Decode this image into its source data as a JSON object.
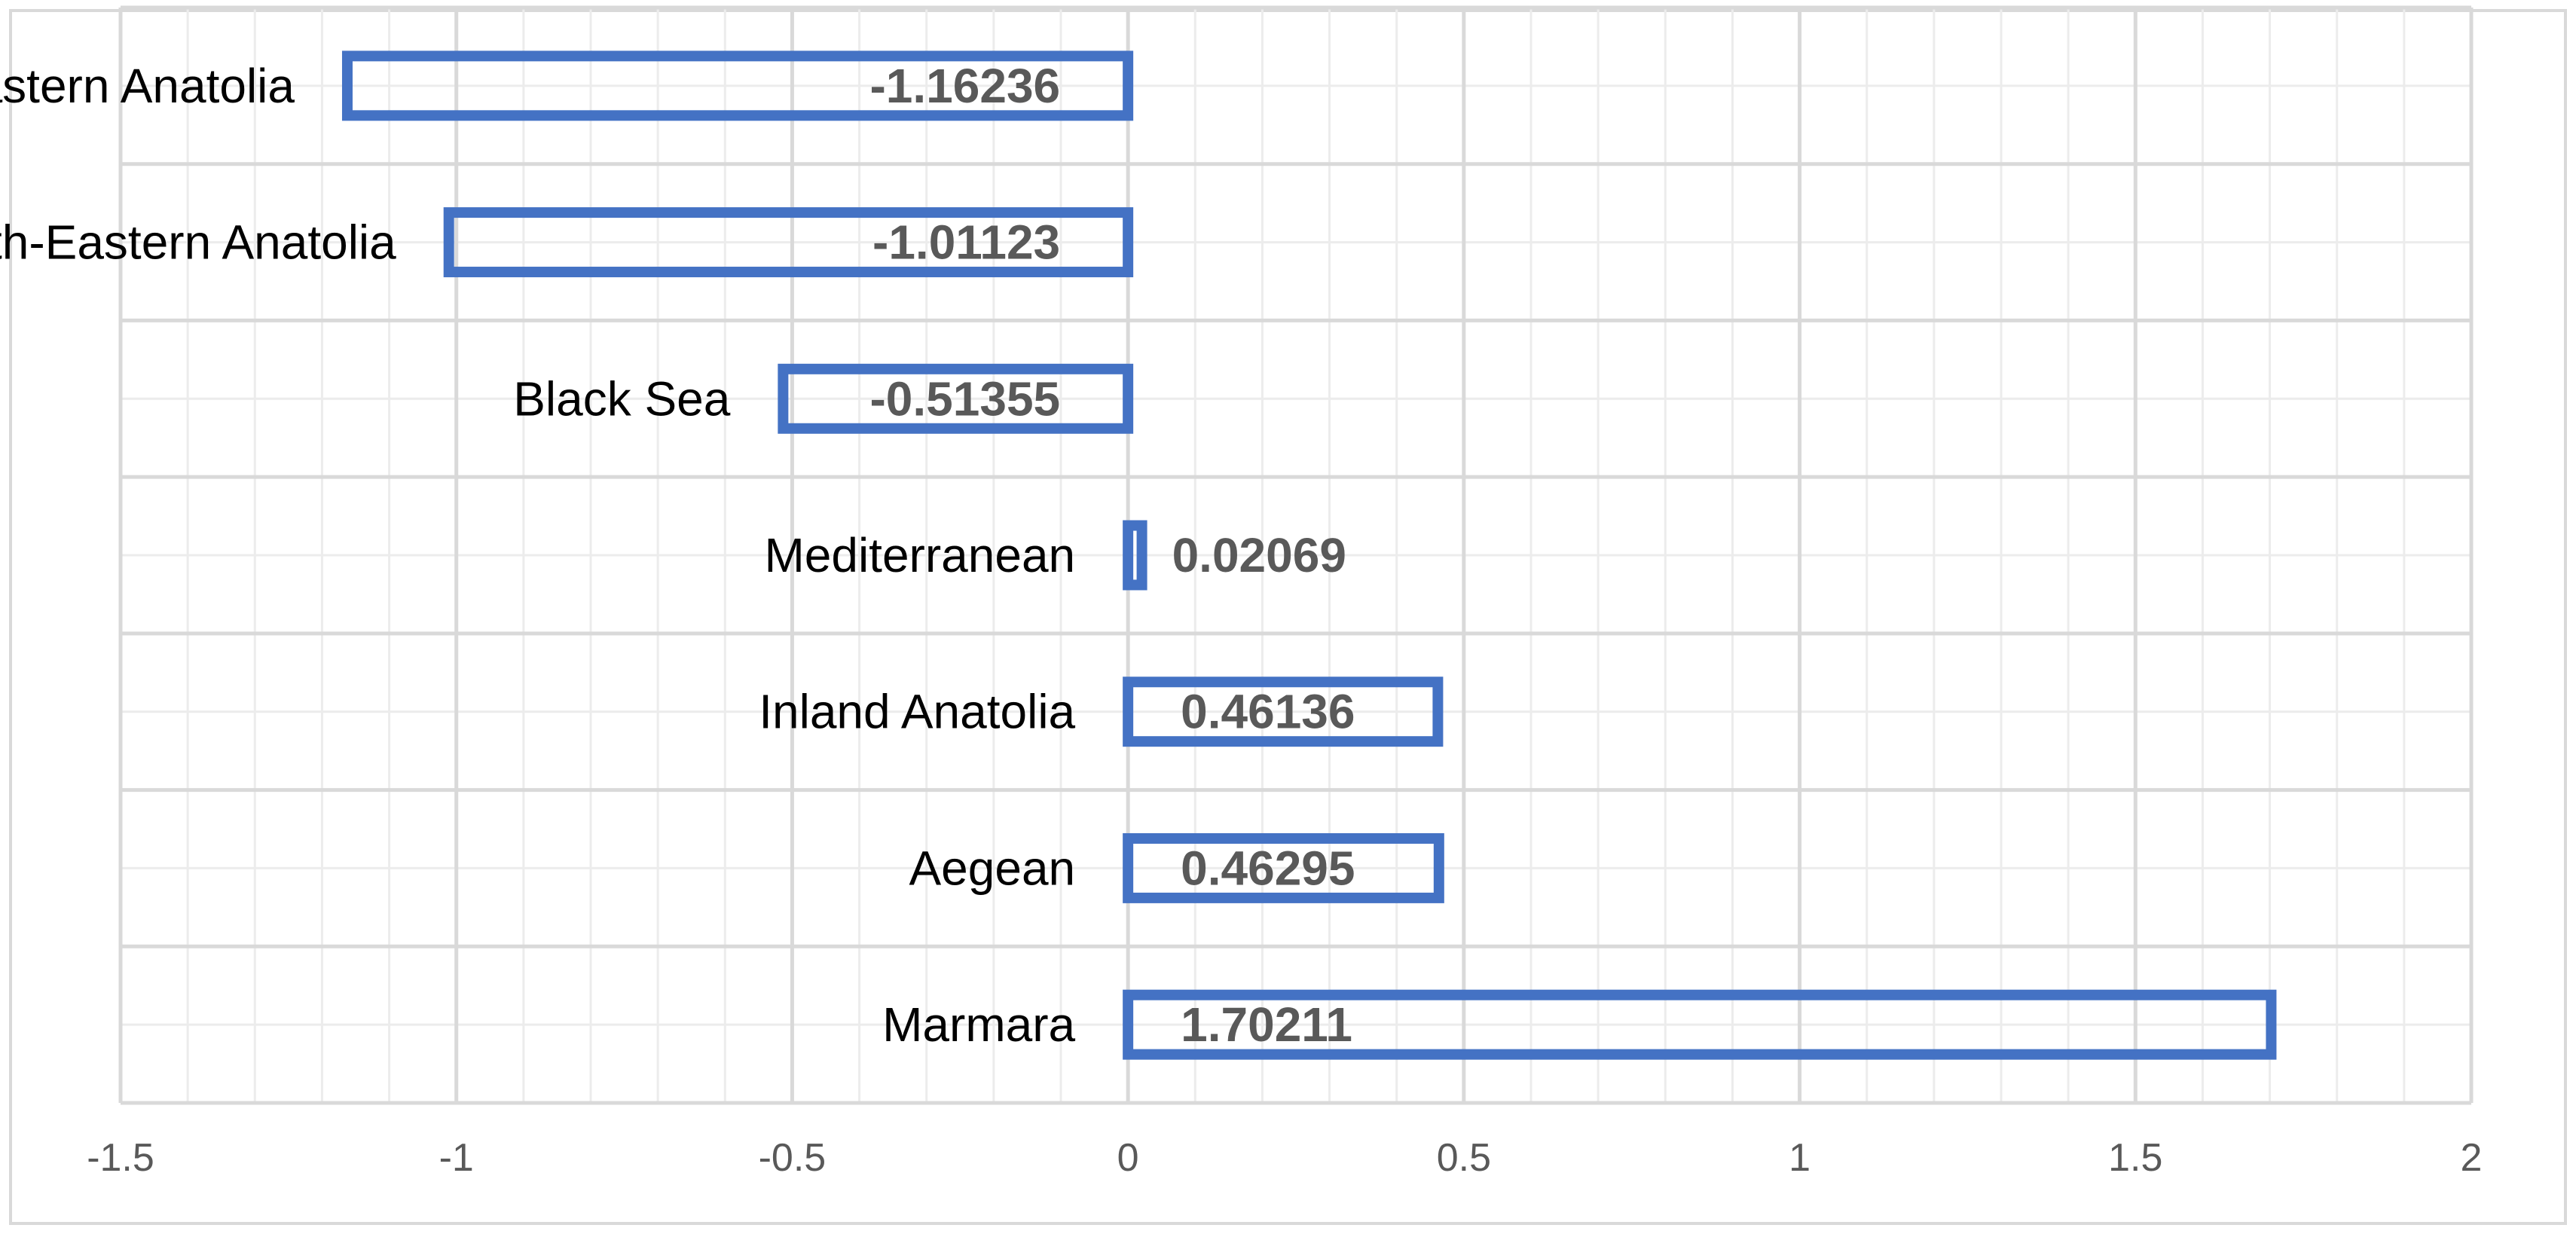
{
  "chart_data": {
    "type": "bar",
    "orientation": "horizontal",
    "categories": [
      "Eastern Anatolia",
      "South-Eastern Anatolia",
      "Black Sea",
      "Mediterranean",
      "Inland Anatolia",
      "Aegean",
      "Marmara"
    ],
    "values": [
      -1.16236,
      -1.01123,
      -0.51355,
      0.02069,
      0.46136,
      0.46295,
      1.70211
    ],
    "data_labels": [
      "-1.16236",
      "-1.01123",
      "-0.51355",
      "0.02069",
      "0.46136",
      "0.46295",
      "1.70211"
    ],
    "x_ticks": [
      "-1.5",
      "-1",
      "-0.5",
      "0",
      "0.5",
      "1",
      "1.5",
      "2"
    ],
    "xlim": [
      -1.5,
      2
    ],
    "title": "",
    "xlabel": "",
    "ylabel": "",
    "grid": true,
    "minor_grid": true,
    "legend": false,
    "bar_style": "outline",
    "bar_color": "#4472c4"
  }
}
